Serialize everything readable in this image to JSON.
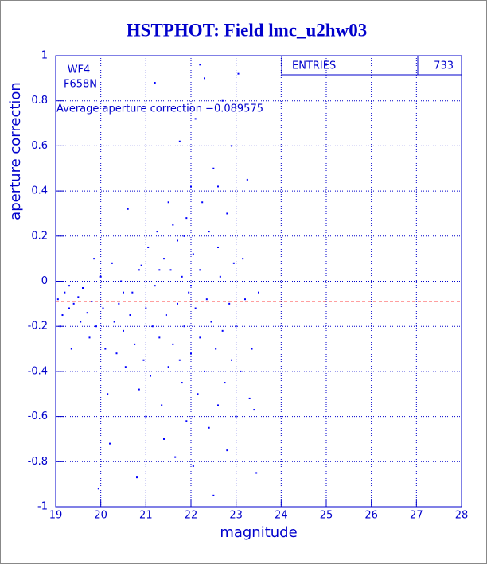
{
  "chart_data": {
    "type": "scatter",
    "title": "HSTPHOT: Field lmc_u2hw03",
    "xlabel": "magnitude",
    "ylabel": "aperture correction",
    "labels": [
      "WF4",
      "F658N"
    ],
    "stats": {
      "label": "ENTRIES",
      "value": 733
    },
    "hline": {
      "value": -0.089575,
      "label": "Average aperture correction −0.089575",
      "color": "#ff0000"
    },
    "xlim": [
      19,
      28
    ],
    "ylim": [
      -1,
      1
    ],
    "xticks": [
      19,
      20,
      21,
      22,
      23,
      24,
      25,
      26,
      27,
      28
    ],
    "yticks": [
      -1,
      -0.8,
      -0.6,
      -0.4,
      -0.2,
      0,
      0.2,
      0.4,
      0.6,
      0.8,
      1
    ],
    "grid": true,
    "series": [
      {
        "color": "#0000ff",
        "x": [
          19.05,
          19.1,
          19.15,
          19.2,
          19.3,
          19.35,
          19.4,
          19.5,
          19.55,
          19.6,
          19.7,
          19.75,
          19.8,
          19.85,
          19.9,
          19.95,
          20.0,
          20.05,
          20.1,
          20.15,
          20.2,
          20.25,
          20.3,
          20.35,
          20.4,
          20.45,
          20.5,
          20.55,
          20.6,
          20.65,
          20.7,
          20.75,
          20.8,
          20.85,
          20.9,
          20.95,
          21.0,
          21.0,
          21.05,
          21.1,
          21.15,
          21.2,
          21.2,
          21.25,
          21.3,
          21.35,
          21.4,
          21.4,
          21.45,
          21.5,
          21.5,
          21.55,
          21.6,
          21.65,
          21.7,
          21.7,
          21.75,
          21.8,
          21.8,
          21.85,
          21.9,
          21.9,
          21.95,
          22.0,
          22.0,
          22.05,
          22.05,
          22.1,
          22.1,
          22.15,
          22.2,
          22.2,
          22.25,
          22.3,
          22.3,
          22.35,
          22.4,
          22.4,
          22.45,
          22.5,
          22.5,
          22.55,
          22.6,
          22.6,
          22.65,
          22.7,
          22.7,
          22.75,
          22.8,
          22.8,
          22.85,
          22.9,
          22.9,
          22.95,
          23.0,
          23.0,
          23.05,
          23.1,
          23.15,
          23.2,
          23.25,
          23.3,
          23.35,
          23.4,
          23.45,
          23.5,
          22.2,
          21.85,
          21.3,
          20.85,
          22.6,
          21.6,
          22.0,
          21.75,
          20.5,
          19.3
        ],
        "values": [
          -0.08,
          -0.2,
          -0.15,
          -0.05,
          -0.12,
          -0.3,
          -0.1,
          -0.07,
          -0.18,
          -0.03,
          -0.14,
          -0.25,
          -0.09,
          0.1,
          -0.2,
          -0.92,
          0.02,
          -0.12,
          -0.3,
          -0.5,
          -0.72,
          0.08,
          -0.18,
          -0.32,
          -0.1,
          0.0,
          -0.22,
          -0.38,
          0.32,
          -0.15,
          -0.05,
          -0.28,
          -0.87,
          -0.48,
          0.07,
          -0.35,
          -0.12,
          -0.6,
          0.15,
          -0.42,
          -0.2,
          -0.02,
          0.88,
          0.22,
          -0.25,
          -0.55,
          0.1,
          -0.7,
          -0.15,
          0.35,
          -0.38,
          0.05,
          -0.28,
          -0.78,
          0.18,
          -0.1,
          0.62,
          -0.45,
          0.02,
          -0.2,
          0.28,
          -0.62,
          -0.05,
          0.42,
          -0.32,
          0.12,
          -0.82,
          -0.12,
          0.72,
          -0.5,
          0.05,
          -0.25,
          0.35,
          -0.4,
          0.9,
          -0.08,
          0.22,
          -0.65,
          -0.18,
          0.5,
          -0.95,
          -0.3,
          0.15,
          -0.55,
          0.02,
          -0.22,
          0.8,
          -0.45,
          0.3,
          -0.75,
          -0.1,
          0.6,
          -0.35,
          0.08,
          -0.2,
          -0.6,
          0.92,
          -0.4,
          0.1,
          -0.08,
          0.45,
          -0.52,
          -0.3,
          -0.57,
          -0.85,
          -0.05,
          0.96,
          0.2,
          0.05,
          0.05,
          0.42,
          0.25,
          -0.02,
          -0.35,
          -0.05,
          -0.02
        ]
      }
    ]
  }
}
